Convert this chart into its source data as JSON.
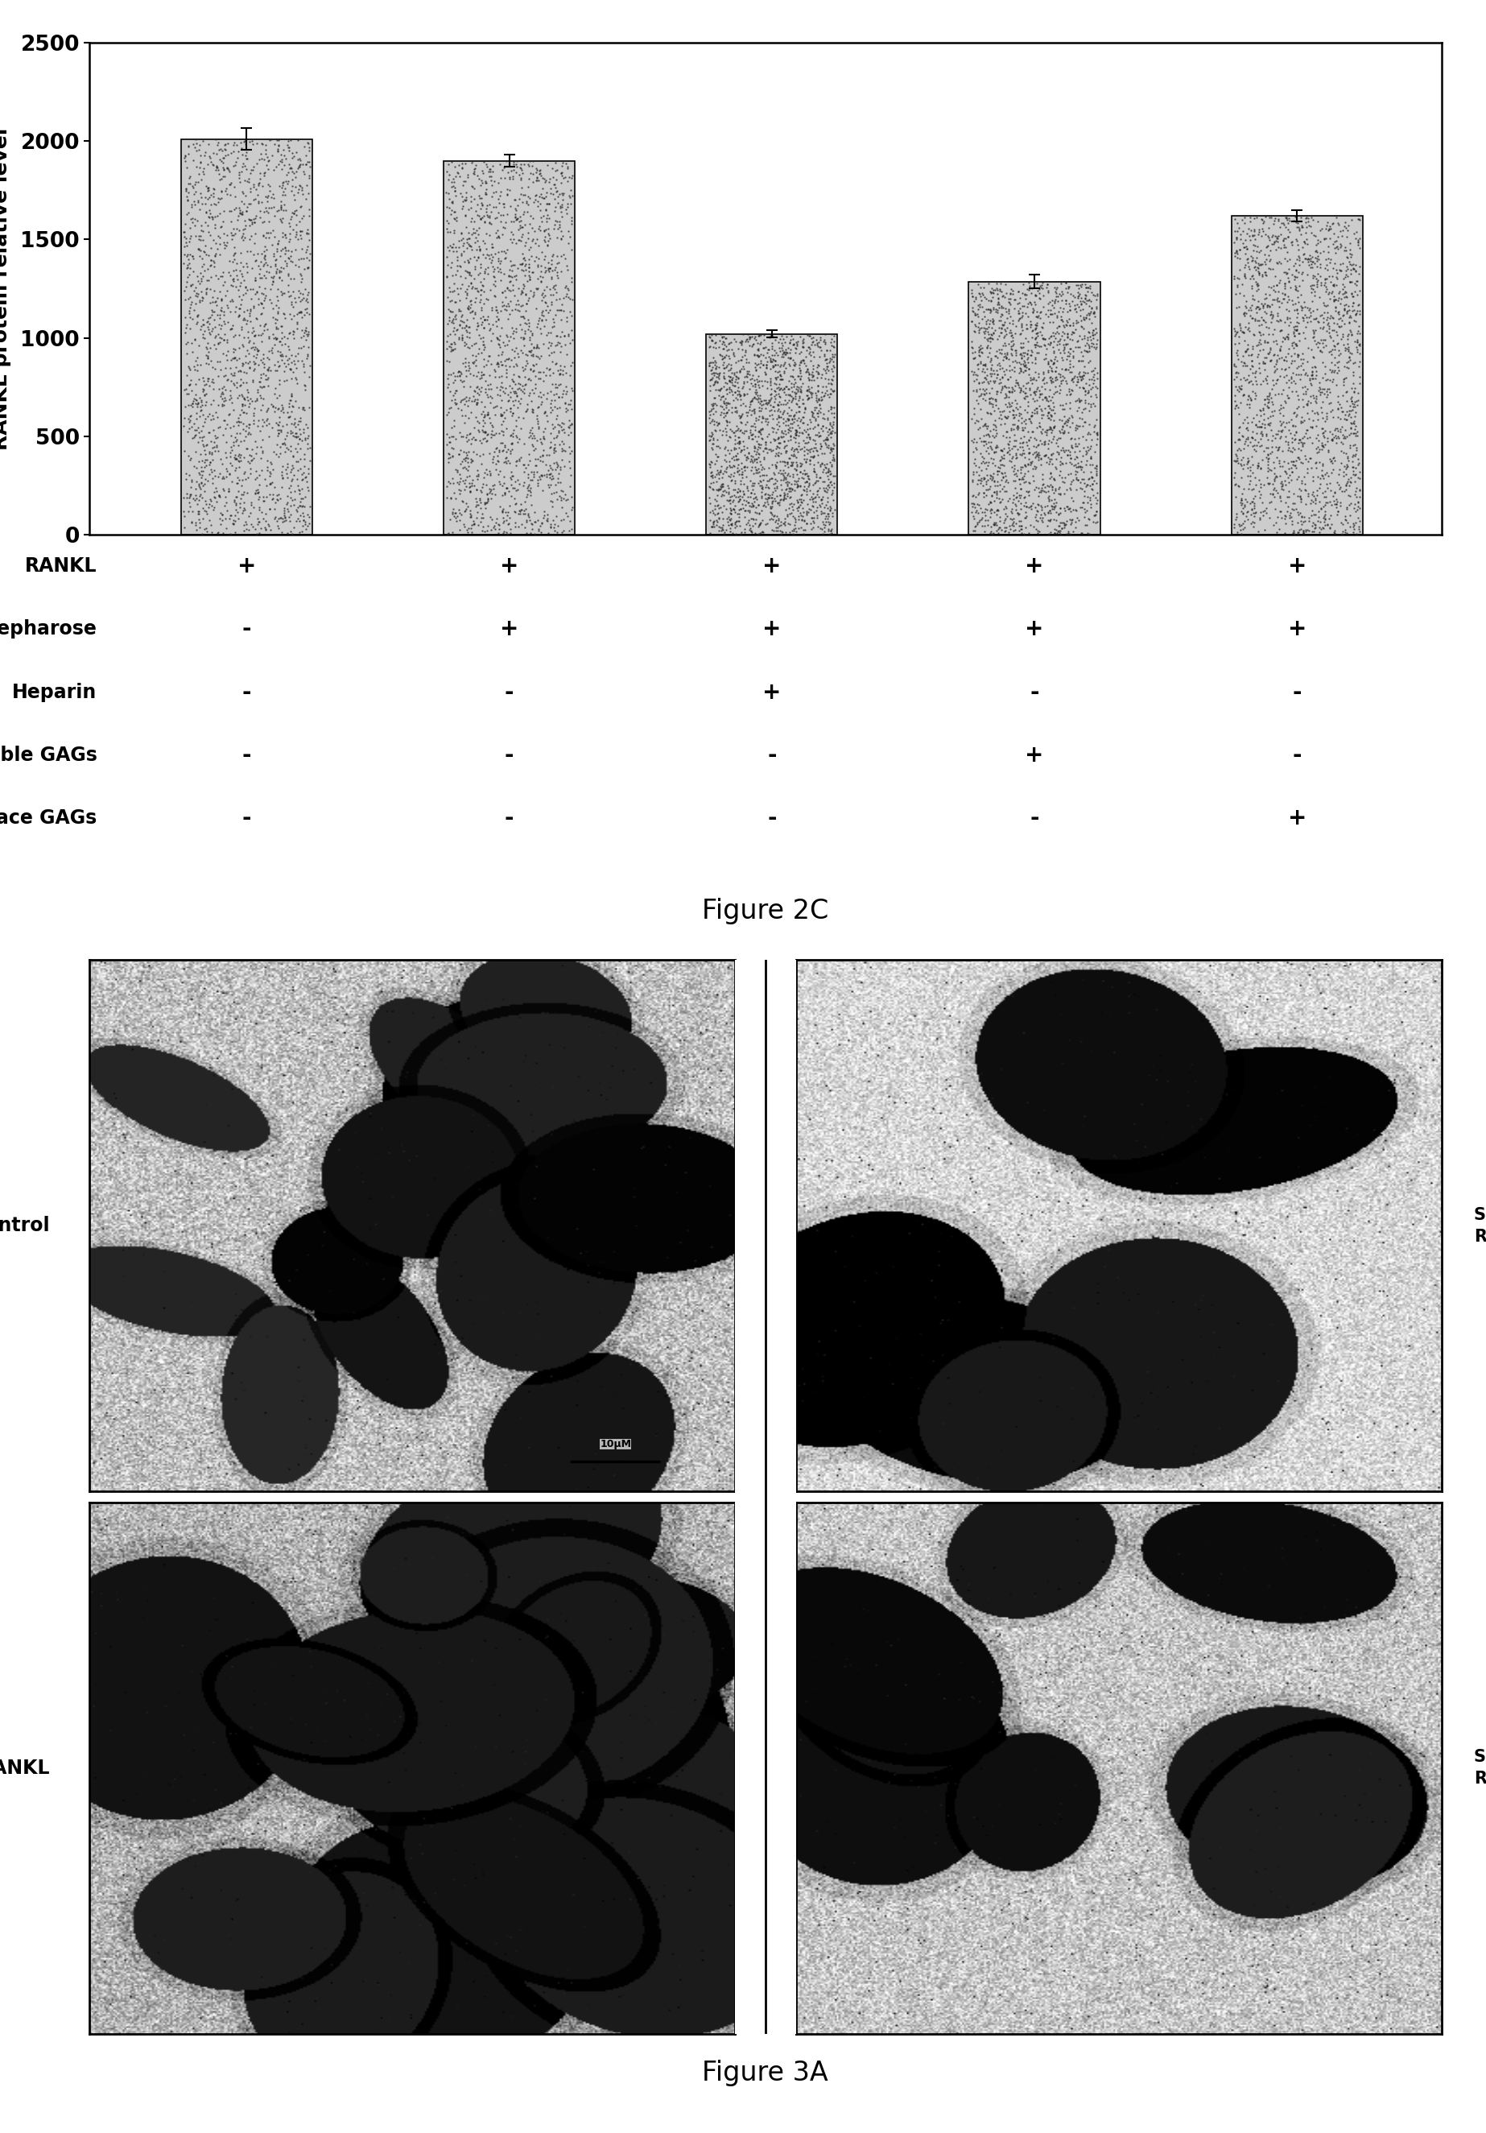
{
  "bar_values": [
    2010,
    1900,
    1020,
    1285,
    1620
  ],
  "bar_errors": [
    55,
    30,
    18,
    35,
    28
  ],
  "bar_color": "#cccccc",
  "ylim": [
    0,
    2500
  ],
  "yticks": [
    0,
    500,
    1000,
    1500,
    2000,
    2500
  ],
  "ylabel": "RANKL protein relative level",
  "figure_caption_top": "Figure 2C",
  "figure_caption_bottom": "Figure 3A",
  "table_labels": [
    "RANKL",
    "Heparin-Sepharose",
    "Heparin",
    "Soluble GAGs",
    "Surface GAGs"
  ],
  "table_signs": [
    [
      "+",
      "+",
      "+",
      "+",
      "+"
    ],
    [
      "-",
      "+",
      "+",
      "+",
      "+"
    ],
    [
      "-",
      "-",
      "+",
      "-",
      "-"
    ],
    [
      "-",
      "-",
      "-",
      "+",
      "-"
    ],
    [
      "-",
      "-",
      "-",
      "-",
      "+"
    ]
  ],
  "micro_labels_left": [
    "Control",
    "RANKL"
  ],
  "micro_labels_right": [
    "Soluble GAGS+\nRANKL",
    "Surface GAGS+\nRANKL"
  ],
  "scale_bar_text": "10µM",
  "background_color": "#ffffff"
}
